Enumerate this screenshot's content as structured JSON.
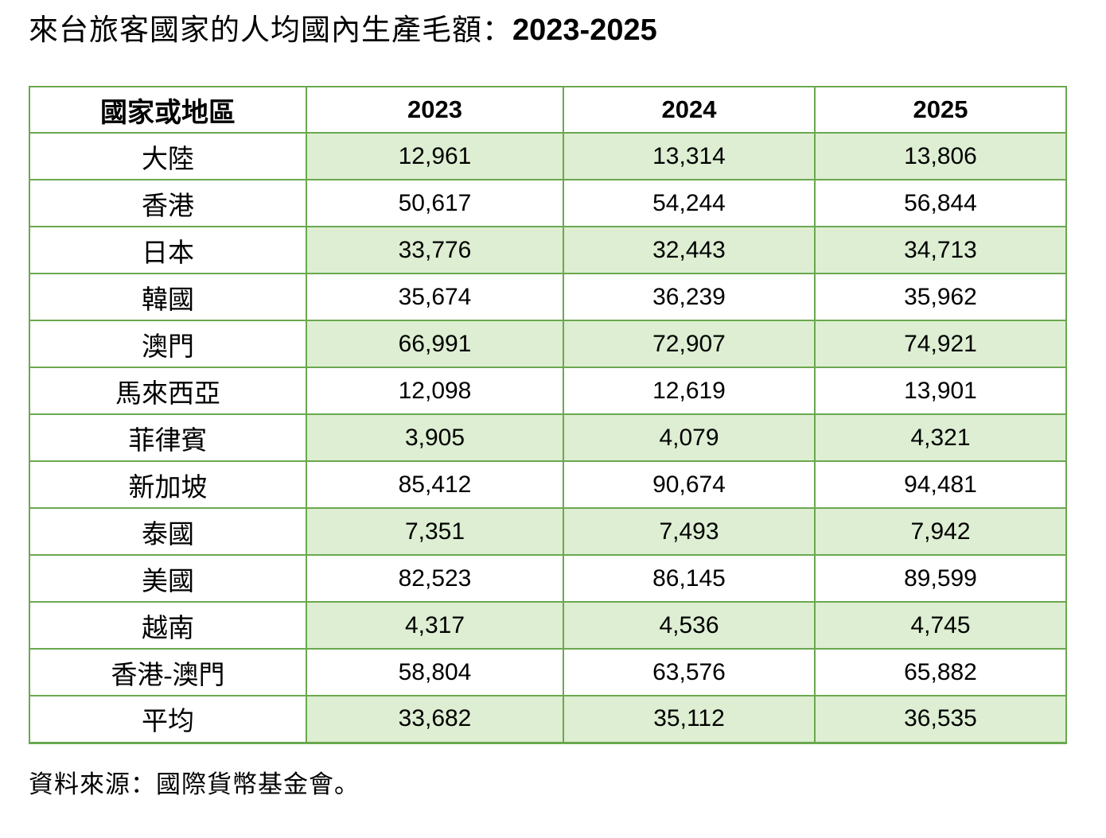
{
  "title": {
    "text": "來台旅客國家的人均國內生產毛額：",
    "years": "2023-2025"
  },
  "table": {
    "columns": [
      "國家或地區",
      "2023",
      "2024",
      "2025"
    ],
    "rows": [
      {
        "region": "大陸",
        "values": [
          "12,961",
          "13,314",
          "13,806"
        ]
      },
      {
        "region": "香港",
        "values": [
          "50,617",
          "54,244",
          "56,844"
        ]
      },
      {
        "region": "日本",
        "values": [
          "33,776",
          "32,443",
          "34,713"
        ]
      },
      {
        "region": "韓國",
        "values": [
          "35,674",
          "36,239",
          "35,962"
        ]
      },
      {
        "region": "澳門",
        "values": [
          "66,991",
          "72,907",
          "74,921"
        ]
      },
      {
        "region": "馬來西亞",
        "values": [
          "12,098",
          "12,619",
          "13,901"
        ]
      },
      {
        "region": "菲律賓",
        "values": [
          "3,905",
          "4,079",
          "4,321"
        ]
      },
      {
        "region": "新加坡",
        "values": [
          "85,412",
          "90,674",
          "94,481"
        ]
      },
      {
        "region": "泰國",
        "values": [
          "7,351",
          "7,493",
          "7,942"
        ]
      },
      {
        "region": "美國",
        "values": [
          "82,523",
          "86,145",
          "89,599"
        ]
      },
      {
        "region": "越南",
        "values": [
          "4,317",
          "4,536",
          "4,745"
        ]
      },
      {
        "region": "香港-澳門",
        "values": [
          "58,804",
          "63,576",
          "65,882"
        ]
      },
      {
        "region": "平均",
        "values": [
          "33,682",
          "35,112",
          "36,535"
        ]
      }
    ]
  },
  "footer": {
    "source": "資料來源：國際貨幣基金會。"
  },
  "colors": {
    "border": "#6aa84f",
    "band_fill": "#ddeed2",
    "background": "#ffffff",
    "text": "#000000"
  }
}
